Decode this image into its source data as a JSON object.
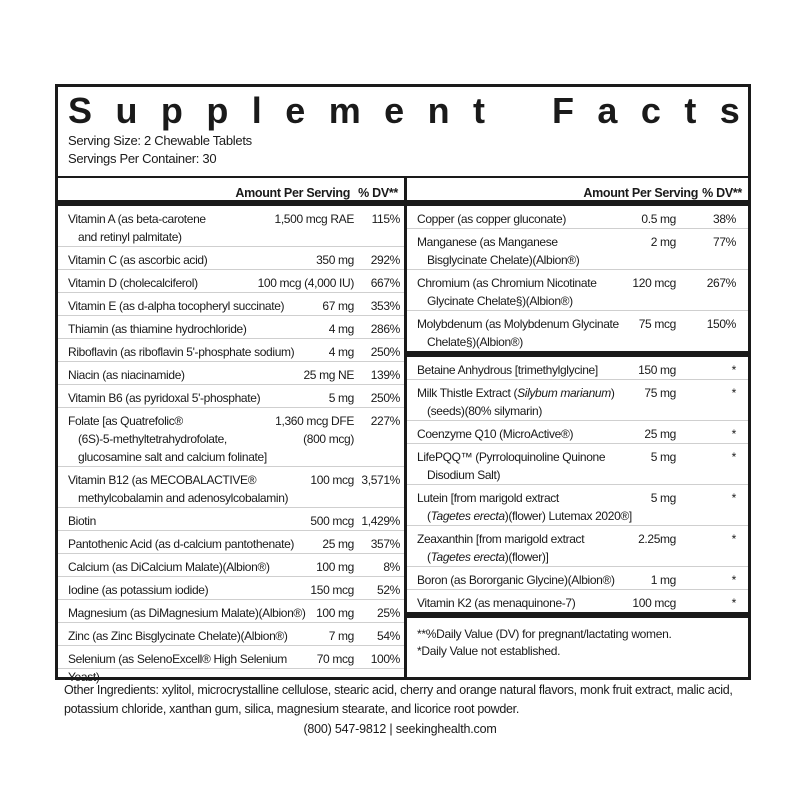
{
  "title": "Supplement Facts",
  "serving_size": "Serving Size: 2 Chewable Tablets",
  "servings_per_container": "Servings Per Container: 30",
  "header": {
    "amount": "Amount Per Serving",
    "dv": "% DV**"
  },
  "left_rows": [
    {
      "name": [
        "Vitamin A (as beta-carotene",
        "and retinyl palmitate)"
      ],
      "amount": [
        "1,500 mcg RAE"
      ],
      "dv": "115%"
    },
    {
      "name": [
        "Vitamin C (as ascorbic acid)"
      ],
      "amount": [
        "350 mg"
      ],
      "dv": "292%"
    },
    {
      "name": [
        "Vitamin D (cholecalciferol)"
      ],
      "amount": [
        "100 mcg (4,000 IU)"
      ],
      "dv": "667%"
    },
    {
      "name": [
        "Vitamin E (as d-alpha tocopheryl succinate)"
      ],
      "amount": [
        "67 mg"
      ],
      "dv": "353%"
    },
    {
      "name": [
        "Thiamin (as thiamine hydrochloride)"
      ],
      "amount": [
        "4 mg"
      ],
      "dv": "286%"
    },
    {
      "name": [
        "Riboflavin (as riboflavin 5'-phosphate sodium)"
      ],
      "amount": [
        "4 mg"
      ],
      "dv": "250%"
    },
    {
      "name": [
        "Niacin (as niacinamide)"
      ],
      "amount": [
        "25 mg NE"
      ],
      "dv": "139%"
    },
    {
      "name": [
        "Vitamin B6 (as pyridoxal 5'-phosphate)"
      ],
      "amount": [
        "5 mg"
      ],
      "dv": "250%"
    },
    {
      "name": [
        "Folate [as Quatrefolic®",
        "(6S)-5-methyltetrahydrofolate,",
        "glucosamine salt and calcium folinate]"
      ],
      "amount": [
        "1,360 mcg DFE",
        "(800 mcg)"
      ],
      "dv": "227%"
    },
    {
      "name": [
        "Vitamin B12 (as MECOBALACTIVE®",
        "methylcobalamin and adenosylcobalamin)"
      ],
      "amount": [
        "100 mcg"
      ],
      "dv": "3,571%"
    },
    {
      "name": [
        "Biotin"
      ],
      "amount": [
        "500 mcg"
      ],
      "dv": "1,429%"
    },
    {
      "name": [
        "Pantothenic Acid (as d-calcium pantothenate)"
      ],
      "amount": [
        "25 mg"
      ],
      "dv": "357%"
    },
    {
      "name": [
        "Calcium (as DiCalcium Malate)(Albion®)"
      ],
      "amount": [
        "100 mg"
      ],
      "dv": "8%"
    },
    {
      "name": [
        "Iodine (as potassium iodide)"
      ],
      "amount": [
        "150 mcg"
      ],
      "dv": "52%"
    },
    {
      "name": [
        "Magnesium (as DiMagnesium Malate)(Albion®)"
      ],
      "amount": [
        "100 mg"
      ],
      "dv": "25%"
    },
    {
      "name": [
        "Zinc (as Zinc Bisglycinate Chelate)(Albion®)"
      ],
      "amount": [
        "7 mg"
      ],
      "dv": "54%"
    },
    {
      "name": [
        "Selenium (as SelenoExcell® High Selenium Yeast)"
      ],
      "amount": [
        "70 mcg"
      ],
      "dv": "100%"
    }
  ],
  "right_rows": [
    {
      "name": [
        "Copper (as copper gluconate)"
      ],
      "amount": [
        "0.5 mg"
      ],
      "dv": "38%"
    },
    {
      "name": [
        "Manganese (as Manganese",
        "Bisglycinate Chelate)(Albion®)"
      ],
      "amount": [
        "2 mg"
      ],
      "dv": "77%"
    },
    {
      "name": [
        "Chromium (as Chromium Nicotinate",
        "Glycinate Chelate§)(Albion®)"
      ],
      "amount": [
        "120 mcg"
      ],
      "dv": "267%"
    },
    {
      "name": [
        "Molybdenum (as Molybdenum Glycinate",
        "Chelate§)(Albion®)"
      ],
      "amount": [
        "75 mcg"
      ],
      "dv": "150%",
      "thick": true
    },
    {
      "name": [
        "Betaine Anhydrous [trimethylglycine]"
      ],
      "amount": [
        "150 mg"
      ],
      "dv": "*"
    },
    {
      "name": [
        "Milk Thistle Extract (Silybum marianum)",
        "(seeds)(80% silymarin)"
      ],
      "amount": [
        "75 mg"
      ],
      "dv": "*"
    },
    {
      "name": [
        "Coenzyme Q10 (MicroActive®)"
      ],
      "amount": [
        "25 mg"
      ],
      "dv": "*"
    },
    {
      "name": [
        "LifePQQ™ (Pyrroloquinoline Quinone",
        "Disodium Salt)"
      ],
      "amount": [
        "5 mg"
      ],
      "dv": "*"
    },
    {
      "name": [
        "Lutein [from marigold extract",
        "(Tagetes erecta)(flower) Lutemax 2020®]"
      ],
      "amount": [
        "5 mg"
      ],
      "dv": "*"
    },
    {
      "name": [
        "Zeaxanthin [from marigold extract",
        "(Tagetes erecta)(flower)]"
      ],
      "amount": [
        "2.25mg"
      ],
      "dv": "*"
    },
    {
      "name": [
        "Boron (as Bororganic Glycine)(Albion®)"
      ],
      "amount": [
        "1 mg"
      ],
      "dv": "*"
    },
    {
      "name": [
        "Vitamin K2 (as menaquinone-7)"
      ],
      "amount": [
        "100 mcg"
      ],
      "dv": "*",
      "thick": true
    }
  ],
  "italic_terms": [
    "Silybum marianum",
    "Tagetes erecta"
  ],
  "footnotes": [
    "**%Daily Value (DV) for pregnant/lactating women.",
    "*Daily Value not established."
  ],
  "other_ingredients": "Other Ingredients: xylitol, microcrystalline cellulose, stearic acid, cherry and orange natural flavors, monk fruit extract, malic acid, potassium chloride, xanthan gum, silica, magnesium stearate, and licorice root powder.",
  "contact": "(800) 547-9812  |  seekinghealth.com"
}
